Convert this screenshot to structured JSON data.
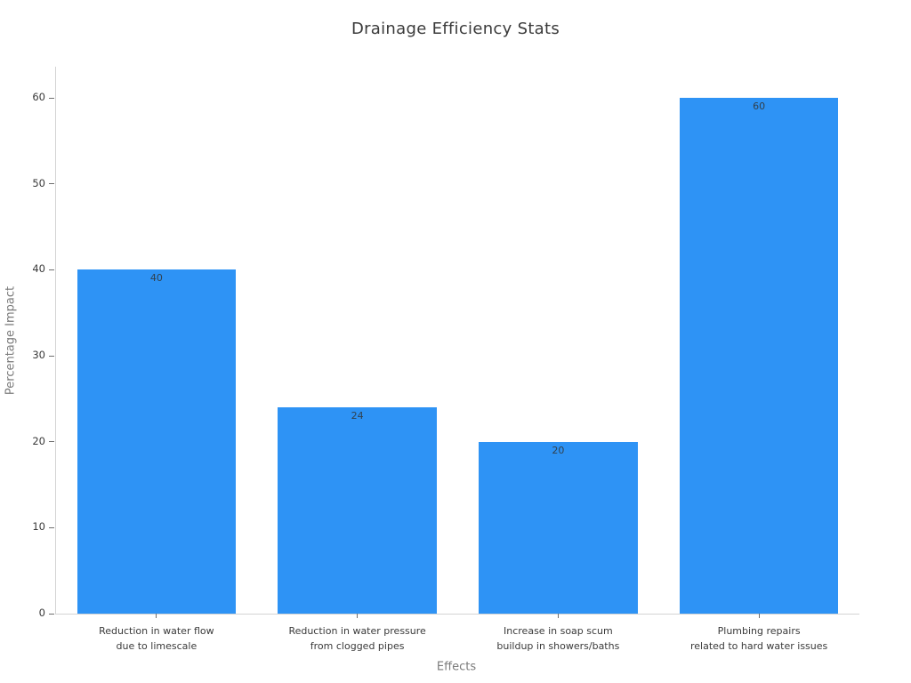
{
  "chart_data": {
    "type": "bar",
    "title": "Drainage Efficiency Stats",
    "xlabel": "Effects",
    "ylabel": "Percentage Impact",
    "categories": [
      "Reduction in water flow\ndue to limescale",
      "Reduction in water pressure\nfrom clogged pipes",
      "Increase in soap scum\nbuildup in showers/baths",
      "Plumbing repairs\nrelated to hard water issues"
    ],
    "values": [
      40,
      24,
      20,
      60
    ],
    "bar_value_labels": [
      "40",
      "24",
      "20",
      "60"
    ],
    "yticks": [
      0,
      10,
      20,
      30,
      40,
      50,
      60
    ],
    "ylim": [
      0,
      63.6
    ],
    "grid": false,
    "legend": false,
    "layout": {
      "legend_position": "none",
      "value_labels_inside_bar_top": true,
      "spines_visible": [
        "left",
        "bottom"
      ]
    },
    "colors": {
      "bar": "#2e93f5",
      "title_text": "#3a3a3a",
      "tick_label_text": "#3a3a3a",
      "axis_label_text": "#7b7b7b",
      "value_label_text": "#31414e",
      "spine": "#d4d4d4",
      "tick_mark": "#6e6e6e",
      "background": "#ffffff"
    }
  }
}
